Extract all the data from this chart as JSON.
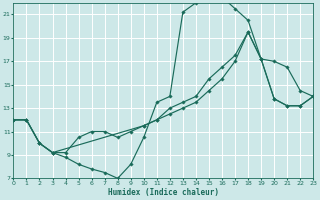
{
  "xlabel": "Humidex (Indice chaleur)",
  "bg_color": "#cde8e8",
  "grid_color": "#ffffff",
  "line_color": "#1a6b5a",
  "xlim": [
    0,
    23
  ],
  "ylim": [
    7,
    22
  ],
  "xticks": [
    0,
    1,
    2,
    3,
    4,
    5,
    6,
    7,
    8,
    9,
    10,
    11,
    12,
    13,
    14,
    15,
    16,
    17,
    18,
    19,
    20,
    21,
    22,
    23
  ],
  "yticks": [
    7,
    9,
    11,
    13,
    15,
    17,
    19,
    21
  ],
  "line1_x": [
    0,
    1,
    2,
    3,
    4,
    5,
    6,
    7,
    8,
    9,
    10,
    11,
    12,
    13,
    14,
    15,
    16,
    17,
    18,
    19,
    20,
    21,
    22,
    23
  ],
  "line1_y": [
    12,
    12,
    10,
    9.2,
    8.8,
    8.2,
    7.8,
    7.5,
    7.0,
    8.2,
    10.5,
    13.5,
    14.0,
    21.2,
    22.0,
    22.5,
    22.5,
    21.5,
    20.5,
    17.2,
    17.0,
    16.5,
    14.5,
    14.0
  ],
  "line2_x": [
    0,
    1,
    2,
    3,
    4,
    5,
    6,
    7,
    8,
    9,
    10,
    11,
    12,
    13,
    14,
    15,
    16,
    17,
    18,
    19,
    20,
    21,
    22,
    23
  ],
  "line2_y": [
    12,
    12,
    10,
    9.2,
    9.2,
    10.5,
    11.0,
    11.0,
    10.5,
    11.0,
    11.5,
    12.0,
    13.0,
    13.5,
    14.0,
    15.5,
    16.5,
    17.5,
    19.5,
    17.2,
    13.8,
    13.2,
    13.2,
    14.0
  ],
  "line3_x": [
    0,
    1,
    2,
    3,
    10,
    11,
    12,
    13,
    14,
    15,
    16,
    17,
    18,
    19,
    20,
    21,
    22,
    23
  ],
  "line3_y": [
    12,
    12,
    10,
    9.2,
    11.5,
    12.0,
    12.5,
    13.0,
    13.5,
    14.5,
    15.5,
    17.0,
    19.5,
    17.2,
    13.8,
    13.2,
    13.2,
    14.0
  ]
}
